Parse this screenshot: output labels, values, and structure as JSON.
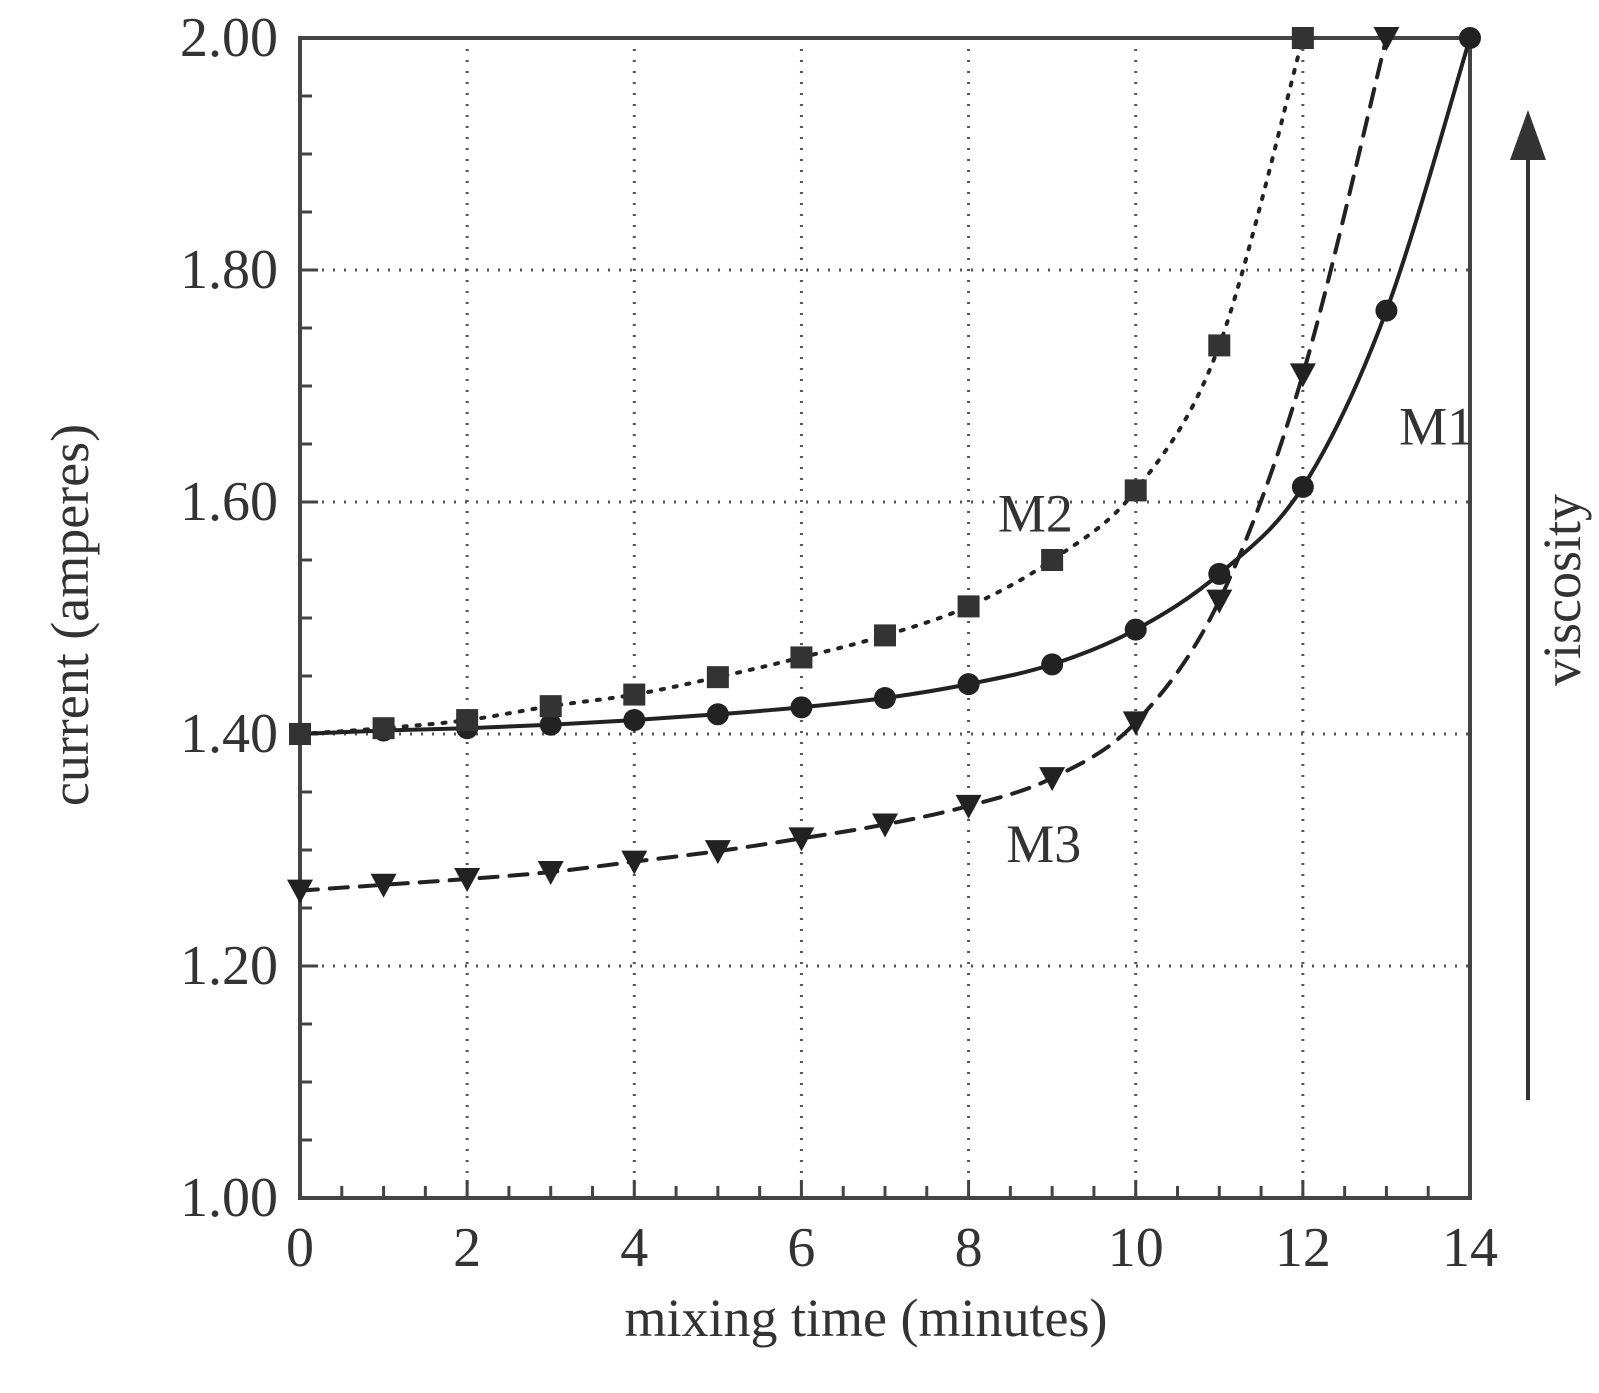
{
  "chart_data": {
    "type": "line",
    "title": "",
    "xlabel": "mixing time (minutes)",
    "ylabel": "current (amperes)",
    "annotation": "viscosity",
    "xlim": [
      0,
      14
    ],
    "ylim": [
      1.0,
      2.0
    ],
    "x_ticks": [
      "0",
      "2",
      "4",
      "6",
      "8",
      "10",
      "12",
      "14"
    ],
    "y_ticks": [
      "1.00",
      "1.20",
      "1.40",
      "1.60",
      "1.80",
      "2.00"
    ],
    "grid": true,
    "series": [
      {
        "name": "M1",
        "marker": "circle",
        "line_style": "solid",
        "x": [
          0,
          1,
          2,
          3,
          4,
          5,
          6,
          7,
          8,
          9,
          10,
          11,
          12,
          13,
          14
        ],
        "y": [
          1.4,
          1.403,
          1.405,
          1.408,
          1.412,
          1.417,
          1.423,
          1.431,
          1.443,
          1.46,
          1.49,
          1.538,
          1.613,
          1.765,
          2.0
        ]
      },
      {
        "name": "M2",
        "marker": "square",
        "line_style": "dotted",
        "x": [
          0,
          1,
          2,
          3,
          4,
          5,
          6,
          7,
          8,
          9,
          10,
          11,
          12
        ],
        "y": [
          1.4,
          1.405,
          1.412,
          1.424,
          1.434,
          1.449,
          1.466,
          1.485,
          1.51,
          1.55,
          1.61,
          1.735,
          2.0
        ]
      },
      {
        "name": "M3",
        "marker": "triangle-down",
        "line_style": "dashed",
        "x": [
          0,
          1,
          2,
          3,
          4,
          5,
          6,
          7,
          8,
          9,
          10,
          11,
          12,
          13
        ],
        "y": [
          1.265,
          1.27,
          1.275,
          1.281,
          1.29,
          1.299,
          1.31,
          1.322,
          1.338,
          1.362,
          1.41,
          1.515,
          1.71,
          2.0
        ]
      }
    ]
  }
}
